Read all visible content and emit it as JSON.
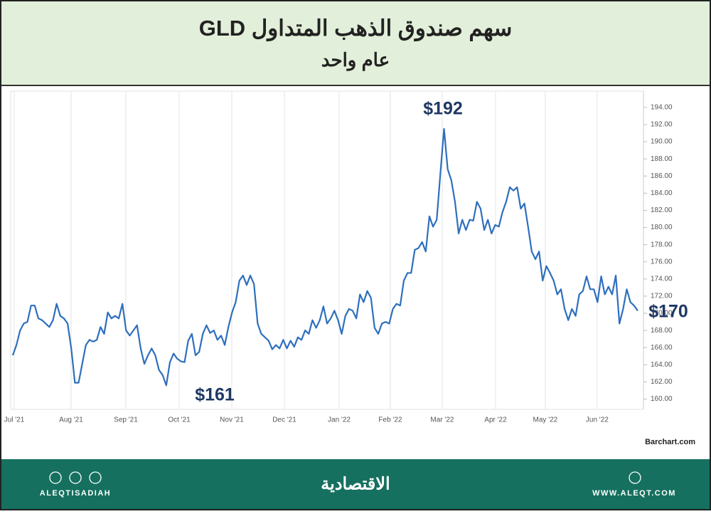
{
  "chart_data": {
    "type": "line",
    "title": "سهم صندوق الذهب المتداول GLD",
    "subtitle": "عام واحد",
    "source": "Barchart.com",
    "annotations": [
      "$192",
      "$161",
      "$170"
    ],
    "series": [
      {
        "color": "#2e6fbd",
        "values": [
          165.1,
          166.3,
          168,
          168.8,
          169,
          170.9,
          170.9,
          169.4,
          169.2,
          168.8,
          168.4,
          169.2,
          171.1,
          169.7,
          169.4,
          168.8,
          165.9,
          161.9,
          161.9,
          164.1,
          166.3,
          166.9,
          166.7,
          166.9,
          168.4,
          167.6,
          170.1,
          169.4,
          169.7,
          169.4,
          171.1,
          168,
          167.4,
          168,
          168.6,
          165.9,
          164.1,
          165.1,
          165.9,
          165.1,
          163.4,
          162.8,
          161.6,
          164.3,
          165.3,
          164.7,
          164.4,
          164.3,
          166.8,
          167.6,
          165.1,
          165.5,
          167.6,
          168.6,
          167.7,
          168,
          166.9,
          167.4,
          166.3,
          168.4,
          170.1,
          171.3,
          173.8,
          174.4,
          173.3,
          174.4,
          173.4,
          168.8,
          167.6,
          167.2,
          166.8,
          165.8,
          166.3,
          165.9,
          166.9,
          165.9,
          166.8,
          166.1,
          167.2,
          166.9,
          168,
          167.6,
          169.2,
          168.3,
          169.2,
          170.8,
          168.8,
          169.4,
          170.3,
          169.2,
          167.6,
          169.7,
          170.5,
          170.3,
          169.4,
          172.2,
          171.3,
          172.6,
          171.8,
          168.3,
          167.6,
          168.8,
          169,
          168.8,
          170.5,
          171.1,
          170.9,
          173.8,
          174.7,
          174.7,
          177.4,
          177.6,
          178.3,
          177.2,
          181.3,
          180.1,
          180.9,
          186.3,
          191.5,
          186.8,
          185.5,
          183,
          179.3,
          180.9,
          179.7,
          180.9,
          180.8,
          183,
          182.2,
          179.7,
          180.9,
          179.3,
          180.3,
          180.1,
          181.8,
          183,
          184.7,
          184.3,
          184.7,
          182.2,
          182.8,
          180.1,
          177.2,
          176.3,
          177.2,
          173.8,
          175.5,
          174.7,
          173.8,
          172.2,
          172.8,
          170.5,
          169.2,
          170.5,
          169.7,
          172.2,
          172.6,
          174.3,
          172.8,
          172.8,
          171.3,
          174.3,
          172.2,
          173.1,
          172.2,
          174.4,
          168.8,
          170.5,
          172.8,
          171.3,
          170.9,
          170.3
        ]
      }
    ],
    "xlim": [
      -0.58,
      172.57
    ],
    "xticks": [
      {
        "value": 0.39,
        "label": "Jul '21"
      },
      {
        "value": 15.95,
        "label": "Aug '21"
      },
      {
        "value": 30.93,
        "label": "Sep '21"
      },
      {
        "value": 45.53,
        "label": "Oct '21"
      },
      {
        "value": 59.92,
        "label": "Nov '21"
      },
      {
        "value": 74.32,
        "label": "Dec '21"
      },
      {
        "value": 89.3,
        "label": "Jan '22"
      },
      {
        "value": 103.3,
        "label": "Feb '22"
      },
      {
        "value": 117.5,
        "label": "Mar '22"
      },
      {
        "value": 132.1,
        "label": "Apr '22"
      },
      {
        "value": 145.7,
        "label": "May '22"
      },
      {
        "value": 159.9,
        "label": "Jun '22"
      }
    ],
    "ylim": [
      158.8,
      195.9
    ],
    "yticks": [
      {
        "value": 160,
        "label": "160.00"
      },
      {
        "value": 162,
        "label": "162.00"
      },
      {
        "value": 164,
        "label": "164.00"
      },
      {
        "value": 166,
        "label": "166.00"
      },
      {
        "value": 168,
        "label": "168.00"
      },
      {
        "value": 170,
        "label": "170.00"
      },
      {
        "value": 172,
        "label": "172.00"
      },
      {
        "value": 174,
        "label": "174.00"
      },
      {
        "value": 176,
        "label": "176.00"
      },
      {
        "value": 178,
        "label": "178.00"
      },
      {
        "value": 180,
        "label": "180.00"
      },
      {
        "value": 182,
        "label": "182.00"
      },
      {
        "value": 184,
        "label": "184.00"
      },
      {
        "value": 186,
        "label": "186.00"
      },
      {
        "value": 188,
        "label": "188.00"
      },
      {
        "value": 190,
        "label": "190.00"
      },
      {
        "value": 192,
        "label": "192.00"
      },
      {
        "value": 194,
        "label": "194.00"
      }
    ],
    "grid": true
  },
  "footer": {
    "handle": "ALEQTISADIAH",
    "brand": "الاقتصادية",
    "site": "WWW.ALEQT.COM"
  }
}
